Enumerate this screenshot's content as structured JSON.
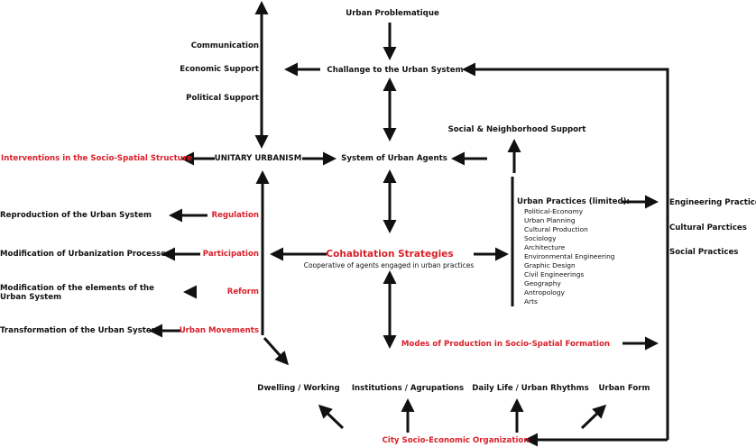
{
  "colors": {
    "accent_red": "#d9202a",
    "text": "#111111",
    "arrow": "#111111"
  },
  "nodes": {
    "urban_problematique": "Urban Problematique",
    "challange": "Challange to the Urban System",
    "communication": "Communication",
    "economic_support": "Economic Support",
    "political_support": "Political Support",
    "unitary_urbanism": "UNITARY URBANISM",
    "interventions": "Interventions in the Socio-Spatial Structure",
    "system_of_agents": "System of Urban Agents",
    "social_support": "Social & Neighborhood Support",
    "urban_practices_title": "Urban Practices (limited):",
    "urban_practices": [
      "Political-Economy",
      "Urban Planning",
      "Cultural Production",
      "Sociology",
      "Architecture",
      "Environmental Engineering",
      "Graphic Design",
      "Civil Engineerings",
      "Geography",
      "Antropology",
      "Arts"
    ],
    "engineering": "Engineering Practices",
    "cultural": "Cultural Parctices",
    "social": "Social Practices",
    "cohabitation": "Cohabitation Strategies",
    "cohabitation_sub": "Cooperative of agents engaged in urban practices",
    "modes": "Modes of Production in Socio-Spatial Formation",
    "regulation": "Regulation",
    "participation": "Participation",
    "reform": "Reform",
    "urban_movements": "Urban Movements",
    "reproduction": "Reproduction of the Urban System",
    "modification_processes": "Modification of Urbanization Processes",
    "modification_elements": "Modification of the elements of the Urban System",
    "transformation": "Transformation of the Urban System",
    "dwelling": "Dwelling / Working",
    "institutions": "Institutions / Agrupations",
    "daily_life": "Daily Life / Urban Rhythms",
    "urban_form": "Urban Form",
    "city_org": "City Socio-Economic Organization"
  }
}
